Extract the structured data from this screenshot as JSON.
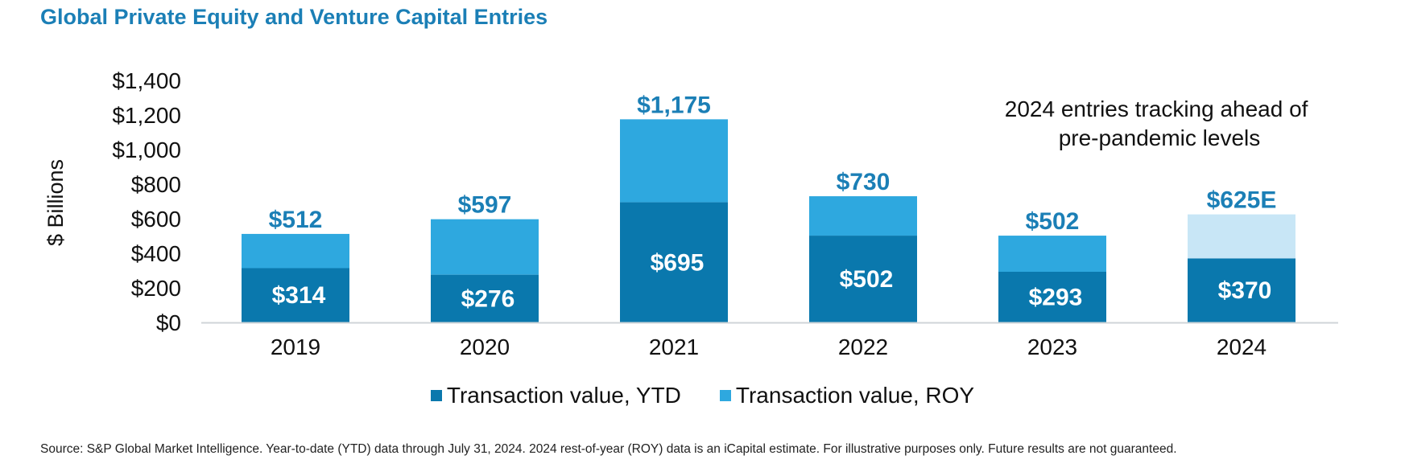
{
  "title": "Global Private Equity and Venture Capital Entries",
  "annotation": [
    "2024 entries tracking ahead of",
    "pre-pandemic levels"
  ],
  "source": "Source: S&P Global Market Intelligence. Year-to-date (YTD) data through July 31, 2024. 2024 rest-of-year (ROY) data is an iCapital estimate. For illustrative purposes only. Future results are not guaranteed.",
  "colors": {
    "ytd": "#0a78ad",
    "roy": "#2ea8df",
    "roy_estimate": "#c8e6f6",
    "accent": "#1b7fb6"
  },
  "legend": [
    {
      "label": "Transaction value, YTD",
      "color": "#0a78ad"
    },
    {
      "label": "Transaction value, ROY",
      "color": "#2ea8df"
    }
  ],
  "chart_data": {
    "type": "bar",
    "stacked": true,
    "categories": [
      "2019",
      "2020",
      "2021",
      "2022",
      "2023",
      "2024"
    ],
    "series": [
      {
        "name": "Transaction value, YTD",
        "values": [
          314,
          276,
          695,
          502,
          293,
          370
        ]
      },
      {
        "name": "Transaction value, ROY",
        "values": [
          198,
          321,
          480,
          228,
          209,
          255
        ]
      }
    ],
    "totals": [
      512,
      597,
      1175,
      730,
      502,
      625
    ],
    "ytd_labels": [
      "$314",
      "$276",
      "$695",
      "$502",
      "$293",
      "$370"
    ],
    "total_labels": [
      "$512",
      "$597",
      "$1,175",
      "$730",
      "$502",
      "$625E"
    ],
    "estimated": [
      false,
      false,
      false,
      false,
      false,
      true
    ],
    "ylabel": "$ Billions",
    "xlabel": "",
    "ylim": [
      0,
      1400
    ],
    "yticks": [
      0,
      200,
      400,
      600,
      800,
      1000,
      1200,
      1400
    ],
    "ytick_labels": [
      "$0",
      "$200",
      "$400",
      "$600",
      "$800",
      "$1,000",
      "$1,200",
      "$1,400"
    ],
    "grid": false,
    "legend_position": "bottom"
  }
}
